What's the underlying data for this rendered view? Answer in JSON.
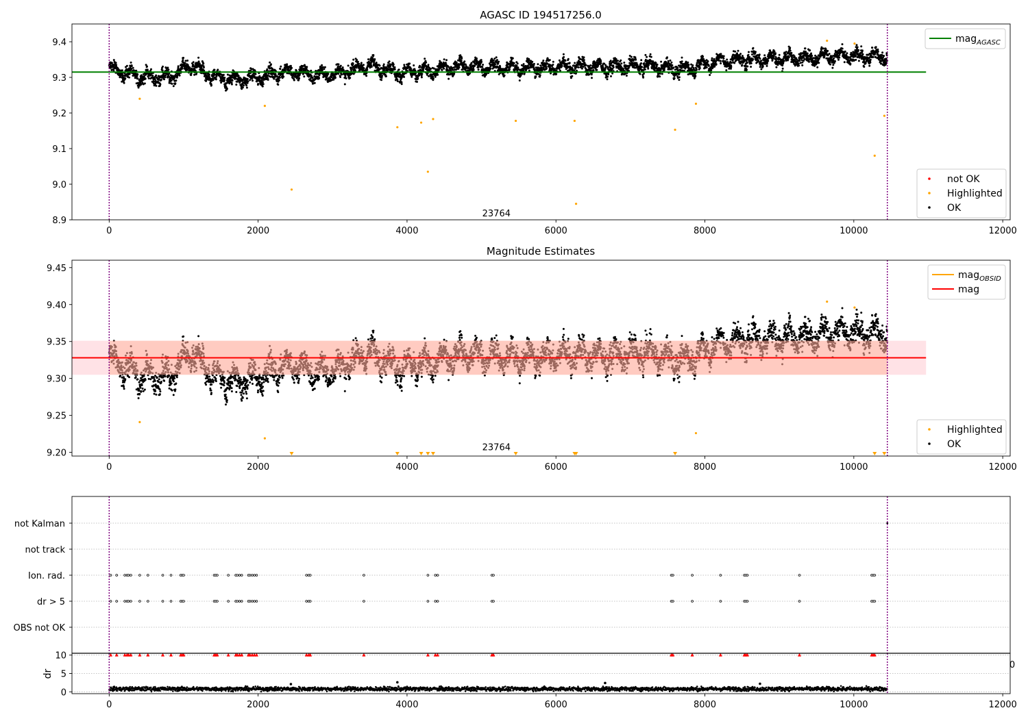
{
  "figure": {
    "title": "AGASC ID 194517256.0",
    "colors": {
      "ok": "#000000",
      "highlighted": "#ffa500",
      "not_ok": "#ff0000",
      "agasc_line": "#008000",
      "mag_line": "#ff0000",
      "obsid_line": "#ffa500",
      "band_fill": "#ffb6c1",
      "band_overlay": "#ffa07a",
      "obs_boundary": "#800080",
      "grid": "#b0b0b0"
    }
  },
  "chart_data": [
    {
      "id": "top",
      "type": "scatter",
      "title": "AGASC ID 194517256.0",
      "xlim": [
        -500,
        12100
      ],
      "ylim": [
        8.9,
        9.45
      ],
      "xticks": [
        0,
        2000,
        4000,
        6000,
        8000,
        10000,
        12000
      ],
      "xtick_labels": [
        "0",
        "2000",
        "4000",
        "6000",
        "8000",
        "10000",
        "12000"
      ],
      "yticks": [
        8.9,
        9.0,
        9.1,
        9.2,
        9.3,
        9.4
      ],
      "ytick_labels": [
        "8.9",
        "9.0",
        "9.1",
        "9.2",
        "9.3",
        "9.4"
      ],
      "obs_boundaries": [
        0,
        10450
      ],
      "annotation": {
        "text": "23764",
        "x": 5200,
        "y": 8.91
      },
      "mag_agasc": {
        "value": 9.315,
        "x_range": [
          -500,
          10970
        ]
      },
      "legend_upper": [
        {
          "label": "mag",
          "subscript": "AGASC",
          "kind": "line",
          "color_key": "agasc_line"
        }
      ],
      "legend_lower": [
        {
          "label": "not OK",
          "kind": "dot",
          "color_key": "not_ok"
        },
        {
          "label": "Highlighted",
          "kind": "dot",
          "color_key": "highlighted"
        },
        {
          "label": "OK",
          "kind": "dot",
          "color_key": "ok"
        }
      ],
      "ok_trend": [
        [
          0,
          9.325
        ],
        [
          400,
          9.302
        ],
        [
          800,
          9.3
        ],
        [
          1100,
          9.335
        ],
        [
          1400,
          9.298
        ],
        [
          1700,
          9.294
        ],
        [
          2000,
          9.3
        ],
        [
          2400,
          9.318
        ],
        [
          2800,
          9.305
        ],
        [
          3100,
          9.312
        ],
        [
          3500,
          9.335
        ],
        [
          3900,
          9.312
        ],
        [
          4300,
          9.318
        ],
        [
          4700,
          9.332
        ],
        [
          5200,
          9.328
        ],
        [
          5700,
          9.326
        ],
        [
          6200,
          9.332
        ],
        [
          6700,
          9.328
        ],
        [
          7200,
          9.334
        ],
        [
          7700,
          9.322
        ],
        [
          8200,
          9.346
        ],
        [
          8700,
          9.352
        ],
        [
          9200,
          9.354
        ],
        [
          9700,
          9.36
        ],
        [
          10100,
          9.358
        ],
        [
          10450,
          9.36
        ]
      ],
      "ok_scatter": 0.018,
      "highlighted": [
        [
          410,
          9.24
        ],
        [
          2090,
          9.22
        ],
        [
          2450,
          8.985
        ],
        [
          3870,
          9.16
        ],
        [
          4190,
          9.173
        ],
        [
          4280,
          9.035
        ],
        [
          4350,
          9.183
        ],
        [
          5460,
          9.178
        ],
        [
          6250,
          9.178
        ],
        [
          6270,
          8.945
        ],
        [
          7600,
          9.153
        ],
        [
          7880,
          9.226
        ],
        [
          9640,
          9.403
        ],
        [
          10010,
          9.395
        ],
        [
          10280,
          9.08
        ],
        [
          10410,
          9.192
        ]
      ]
    },
    {
      "id": "middle",
      "type": "scatter",
      "title": "Magnitude Estimates",
      "xlim": [
        -500,
        12100
      ],
      "ylim": [
        9.195,
        9.46
      ],
      "xticks": [
        0,
        2000,
        4000,
        6000,
        8000,
        10000,
        12000
      ],
      "xtick_labels": [
        "0",
        "2000",
        "4000",
        "6000",
        "8000",
        "10000",
        "12000"
      ],
      "yticks": [
        9.2,
        9.25,
        9.3,
        9.35,
        9.4,
        9.45
      ],
      "ytick_labels": [
        "9.20",
        "9.25",
        "9.30",
        "9.35",
        "9.40",
        "9.45"
      ],
      "obs_boundaries": [
        0,
        10450
      ],
      "annotation": {
        "text": "23764",
        "x": 5200,
        "y": 9.203
      },
      "mag": {
        "value": 9.328,
        "band": [
          9.305,
          9.351
        ],
        "x_range": [
          -500,
          10970
        ]
      },
      "mag_obsid": {
        "value": 9.328,
        "band": [
          9.305,
          9.351
        ],
        "x_range": [
          0,
          10450
        ]
      },
      "legend_upper": [
        {
          "label": "mag",
          "subscript": "OBSID",
          "kind": "line",
          "color_key": "obsid_line"
        },
        {
          "label": "mag",
          "kind": "line",
          "color_key": "mag_line"
        }
      ],
      "legend_lower": [
        {
          "label": "Highlighted",
          "kind": "dot",
          "color_key": "highlighted"
        },
        {
          "label": "OK",
          "kind": "dot",
          "color_key": "ok"
        }
      ],
      "highlighted": [
        [
          410,
          9.241
        ],
        [
          2090,
          9.219
        ],
        [
          7880,
          9.226
        ],
        [
          9640,
          9.404
        ],
        [
          10010,
          9.396
        ]
      ],
      "highlighted_clipped": [
        2450,
        3870,
        4190,
        4280,
        4350,
        5460,
        6250,
        6270,
        7600,
        10280,
        10410
      ]
    },
    {
      "id": "flags",
      "type": "scatter",
      "xlim": [
        -500,
        12100
      ],
      "categories": [
        "not Kalman",
        "not track",
        "Ion. rad.",
        "dr > 5",
        "OBS not OK"
      ],
      "ion_rad_x": [
        20,
        100,
        210,
        240,
        260,
        290,
        410,
        520,
        720,
        830,
        960,
        980,
        1000,
        1410,
        1430,
        1450,
        1600,
        1700,
        1720,
        1750,
        1780,
        1870,
        1890,
        1920,
        1950,
        1980,
        2650,
        2680,
        2700,
        3420,
        4280,
        4380,
        4410,
        5140,
        5160,
        7550,
        7570,
        7830,
        8210,
        8530,
        8550,
        8570,
        9270,
        10240,
        10260,
        10280
      ],
      "not_kalman_x": [
        10450
      ],
      "obs_boundaries": [
        0,
        10450
      ]
    },
    {
      "id": "dr",
      "type": "scatter",
      "ylabel": "dr",
      "xlim": [
        -500,
        12100
      ],
      "ylim": [
        -0.5,
        10.5
      ],
      "xticks": [
        0,
        2000,
        4000,
        6000,
        8000,
        10000,
        12000
      ],
      "xtick_labels": [
        "0",
        "2000",
        "4000",
        "6000",
        "8000",
        "10000",
        "12000"
      ],
      "yticks": [
        0,
        5,
        10
      ],
      "ytick_labels": [
        "0",
        "5",
        "10"
      ],
      "overflow_tick_label": "0",
      "dr_typical": 0.8,
      "outliers": [
        [
          2440,
          2.1
        ],
        [
          3870,
          2.6
        ],
        [
          6660,
          2.4
        ],
        [
          8740,
          2.2
        ]
      ],
      "obs_boundaries": [
        0,
        10450
      ]
    }
  ]
}
